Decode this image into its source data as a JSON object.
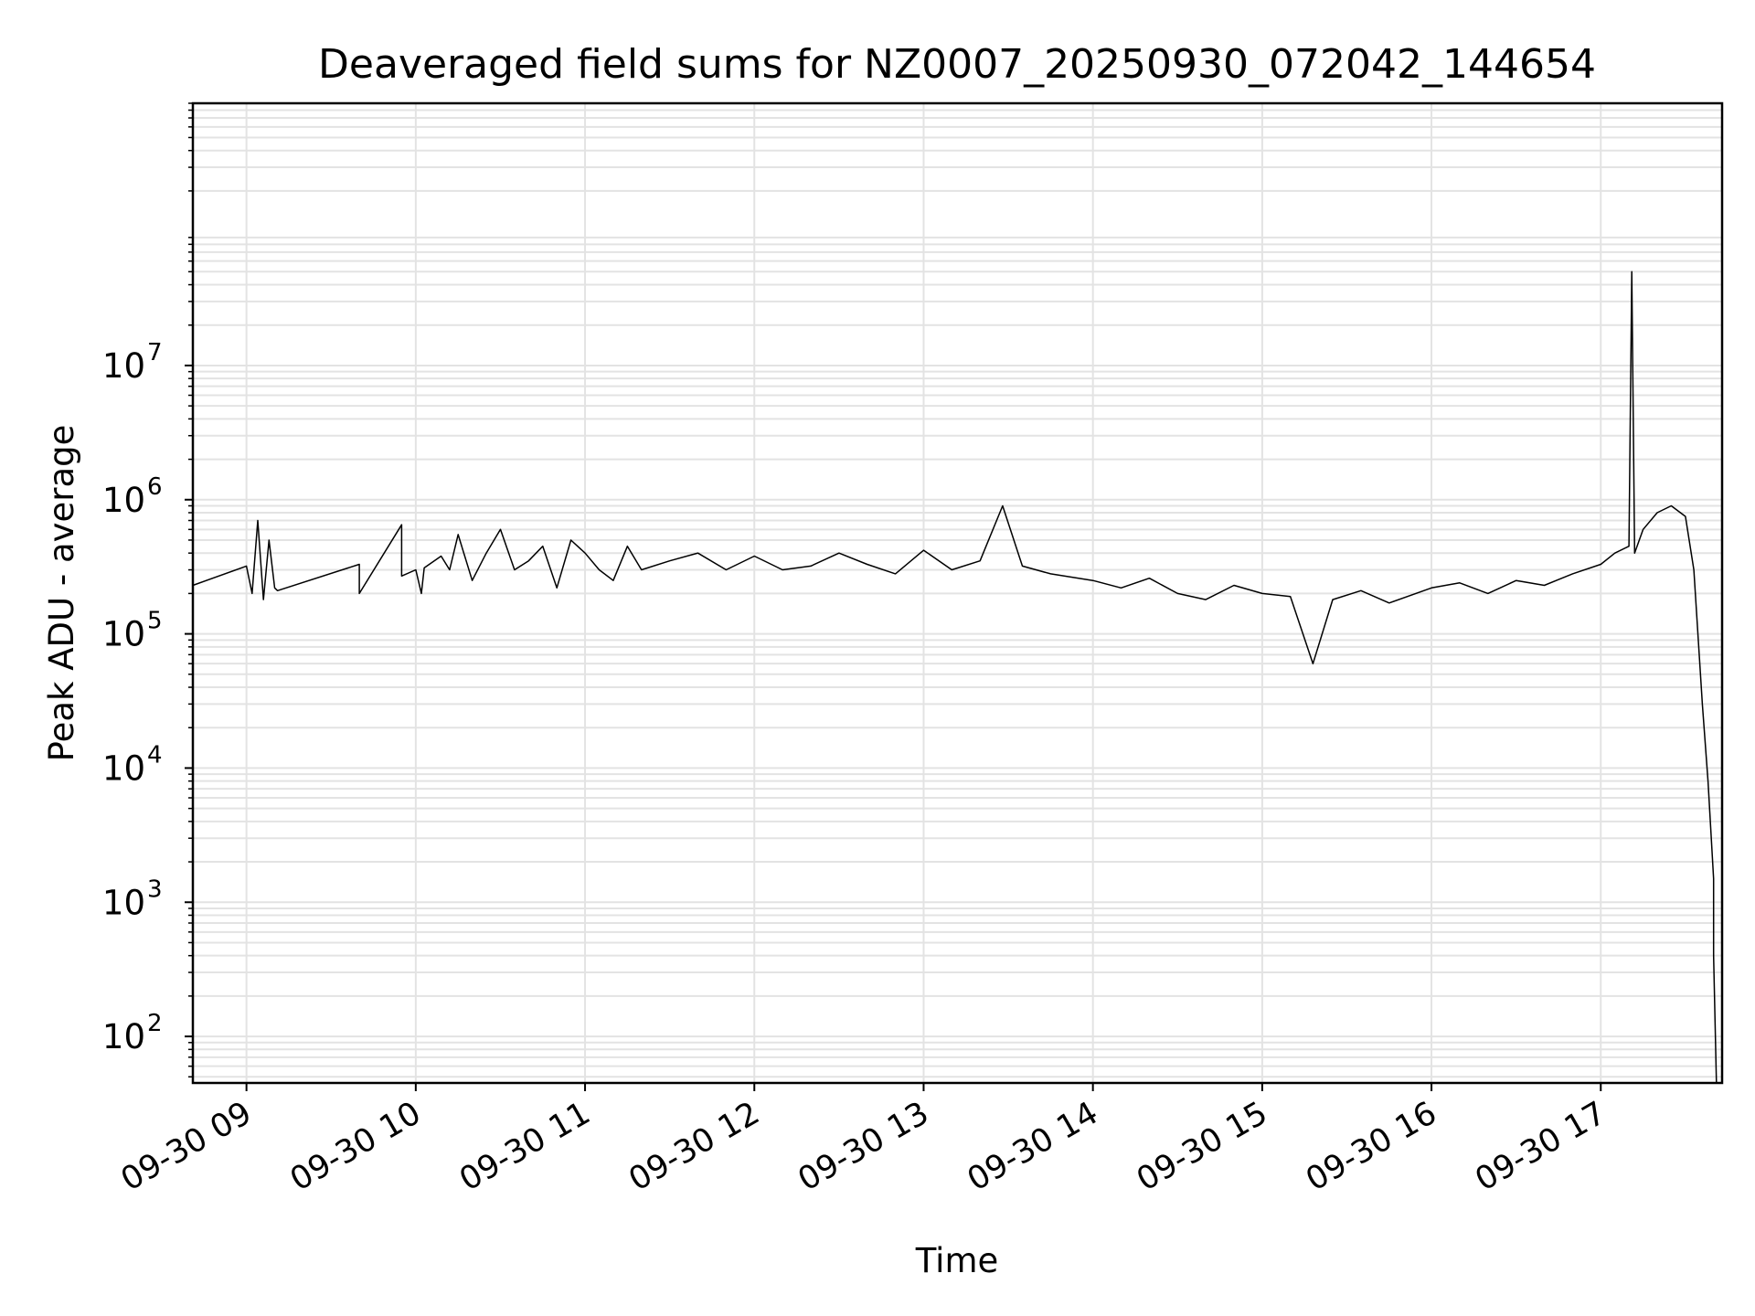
{
  "chart_data": {
    "type": "line",
    "title": "Deaveraged field sums for NZ0007_20250930_072042_144654",
    "xlabel": "Time",
    "ylabel": "Peak ADU - average",
    "yscale": "log",
    "grid": true,
    "legend": "none",
    "line_color": "#000000",
    "grid_color": "#e3e3e3",
    "xlim": [
      "09-30 08:41",
      "09-30 17:43"
    ],
    "ylim": [
      45,
      900000000
    ],
    "x_ticks": [
      "09-30 09",
      "09-30 10",
      "09-30 11",
      "09-30 12",
      "09-30 13",
      "09-30 14",
      "09-30 15",
      "09-30 16",
      "09-30 17"
    ],
    "y_ticks": [
      {
        "base": "10",
        "exp": "2",
        "value": 100
      },
      {
        "base": "10",
        "exp": "3",
        "value": 1000
      },
      {
        "base": "10",
        "exp": "4",
        "value": 10000
      },
      {
        "base": "10",
        "exp": "5",
        "value": 100000
      },
      {
        "base": "10",
        "exp": "6",
        "value": 1000000
      },
      {
        "base": "10",
        "exp": "7",
        "value": 10000000
      }
    ],
    "series": [
      {
        "x": [
          "09-30 08:41",
          "09-30 09:00",
          "09-30 09:02",
          "09-30 09:04",
          "09-30 09:06",
          "09-30 09:08",
          "09-30 09:10",
          "09-30 09:11",
          "09-30 09:40",
          "09-30 09:40",
          "09-30 09:55",
          "09-30 09:55",
          "09-30 10:00",
          "09-30 10:02",
          "09-30 10:03",
          "09-30 10:09",
          "09-30 10:12",
          "09-30 10:15",
          "09-30 10:20",
          "09-30 10:25",
          "09-30 10:30",
          "09-30 10:35",
          "09-30 10:40",
          "09-30 10:45",
          "09-30 10:50",
          "09-30 10:55",
          "09-30 11:00",
          "09-30 11:05",
          "09-30 11:10",
          "09-30 11:15",
          "09-30 11:20",
          "09-30 11:30",
          "09-30 11:40",
          "09-30 11:50",
          "09-30 12:00",
          "09-30 12:10",
          "09-30 12:20",
          "09-30 12:30",
          "09-30 12:40",
          "09-30 12:50",
          "09-30 13:00",
          "09-30 13:10",
          "09-30 13:20",
          "09-30 13:28",
          "09-30 13:35",
          "09-30 13:45",
          "09-30 14:00",
          "09-30 14:10",
          "09-30 14:20",
          "09-30 14:30",
          "09-30 14:40",
          "09-30 14:50",
          "09-30 15:00",
          "09-30 15:10",
          "09-30 15:18",
          "09-30 15:25",
          "09-30 15:35",
          "09-30 15:45",
          "09-30 16:00",
          "09-30 16:10",
          "09-30 16:20",
          "09-30 16:30",
          "09-30 16:40",
          "09-30 16:50",
          "09-30 17:00",
          "09-30 17:05",
          "09-30 17:10",
          "09-30 17:11",
          "09-30 17:12",
          "09-30 17:15",
          "09-30 17:20",
          "09-30 17:25",
          "09-30 17:30",
          "09-30 17:33",
          "09-30 17:36",
          "09-30 17:38",
          "09-30 17:40",
          "09-30 17:40",
          "09-30 17:41"
        ],
        "y": [
          230000,
          320000,
          200000,
          700000,
          180000,
          500000,
          220000,
          210000,
          330000,
          200000,
          650000,
          270000,
          300000,
          200000,
          310000,
          380000,
          300000,
          550000,
          250000,
          400000,
          600000,
          300000,
          350000,
          450000,
          220000,
          500000,
          400000,
          300000,
          250000,
          450000,
          300000,
          350000,
          400000,
          300000,
          380000,
          300000,
          320000,
          400000,
          330000,
          280000,
          420000,
          300000,
          350000,
          900000,
          320000,
          280000,
          250000,
          220000,
          260000,
          200000,
          180000,
          230000,
          200000,
          190000,
          60000,
          180000,
          210000,
          170000,
          220000,
          240000,
          200000,
          250000,
          230000,
          280000,
          330000,
          400000,
          450000,
          50000000,
          400000,
          600000,
          800000,
          900000,
          750000,
          300000,
          30000,
          8000,
          1500,
          400,
          45
        ]
      }
    ]
  }
}
